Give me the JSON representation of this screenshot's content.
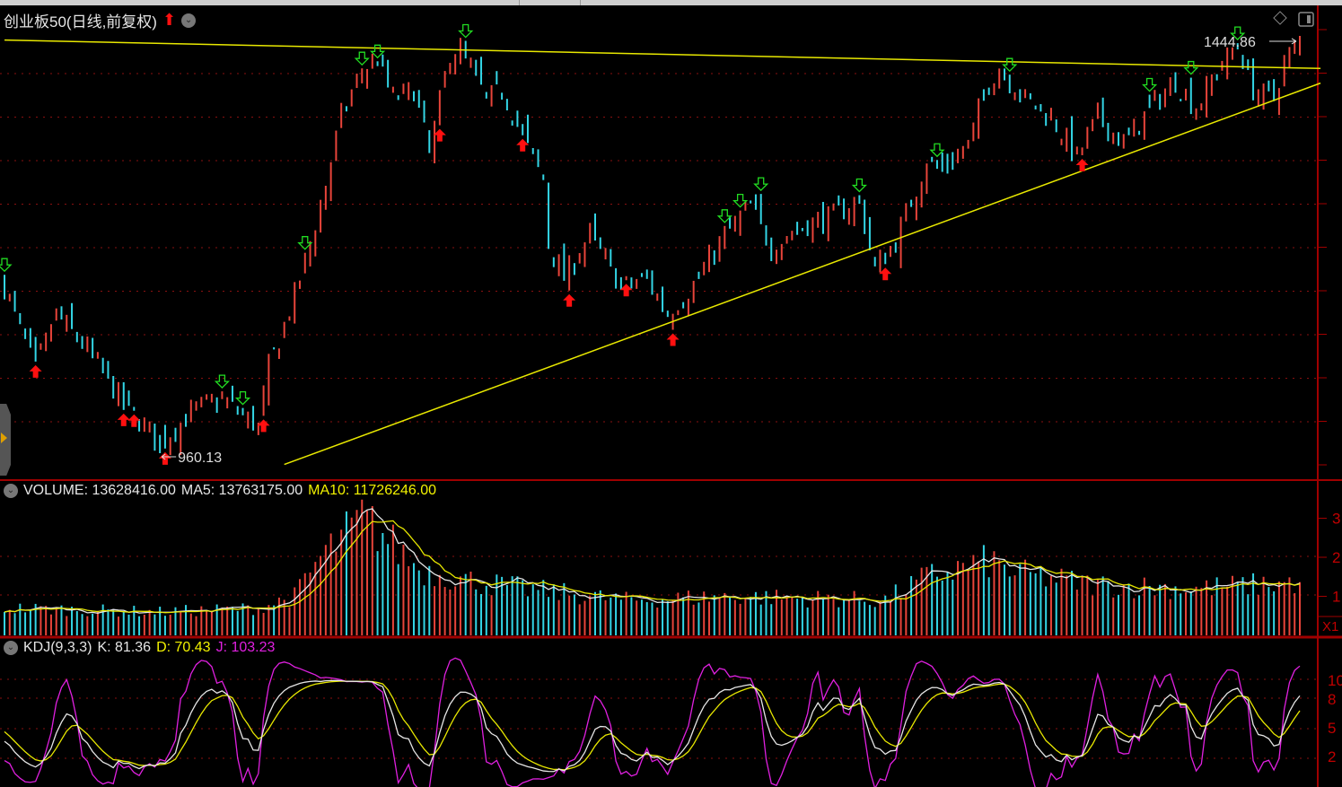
{
  "header": {
    "title": "创业板50(日线,前复权)",
    "title_arrow_icon": "red-up-arrow-icon",
    "dropdown_icon": "chevron-down-icon"
  },
  "toolbar_icons": [
    "diamond-icon",
    "panel-toggle-icon"
  ],
  "colors": {
    "up": "#e8443a",
    "down": "#33d6e6",
    "trendline": "#e8e800",
    "ma5": "#e6e6e6",
    "ma10": "#e8e800",
    "k": "#e6e6e6",
    "d": "#e8e800",
    "j": "#e020e0",
    "axis": "#a00000",
    "buy": "#ff1010",
    "sell": "#22dd22"
  },
  "volume_legend": {
    "volume": "VOLUME: 13628416.00",
    "ma5": "MA5: 13763175.00",
    "ma10": "MA10: 11726246.00"
  },
  "kdj_legend": {
    "name": "KDJ(9,3,3)",
    "k": "K: 81.36",
    "d": "D: 70.43",
    "j": "J: 103.23"
  },
  "chart_data": [
    {
      "type": "ohlc",
      "panel": "price",
      "bar_count": 251,
      "annotations": {
        "low_label": "960.13",
        "high_label": "1444.86",
        "low": 960.13,
        "high": 1444.86,
        "low_bar": 30,
        "high_bar": 250
      },
      "close_keypoints": [
        [
          0,
          1153
        ],
        [
          6,
          1059
        ],
        [
          10,
          1122
        ],
        [
          16,
          1080
        ],
        [
          23,
          1017
        ],
        [
          30,
          972
        ],
        [
          37,
          1012
        ],
        [
          42,
          1023
        ],
        [
          49,
          991
        ],
        [
          51,
          1059
        ],
        [
          56,
          1142
        ],
        [
          61,
          1247
        ],
        [
          65,
          1351
        ],
        [
          69,
          1403
        ],
        [
          72,
          1418
        ],
        [
          75,
          1372
        ],
        [
          79,
          1382
        ],
        [
          82,
          1309
        ],
        [
          86,
          1424
        ],
        [
          88,
          1429
        ],
        [
          93,
          1372
        ],
        [
          96,
          1382
        ],
        [
          100,
          1330
        ],
        [
          104,
          1278
        ],
        [
          105,
          1205
        ],
        [
          108,
          1163
        ],
        [
          113,
          1215
        ],
        [
          119,
          1153
        ],
        [
          124,
          1163
        ],
        [
          128,
          1122
        ],
        [
          133,
          1153
        ],
        [
          138,
          1205
        ],
        [
          144,
          1247
        ],
        [
          148,
          1200
        ],
        [
          155,
          1226
        ],
        [
          160,
          1236
        ],
        [
          165,
          1252
        ],
        [
          168,
          1174
        ],
        [
          172,
          1205
        ],
        [
          178,
          1299
        ],
        [
          181,
          1288
        ],
        [
          186,
          1319
        ],
        [
          190,
          1392
        ],
        [
          192,
          1408
        ],
        [
          197,
          1372
        ],
        [
          202,
          1351
        ],
        [
          207,
          1304
        ],
        [
          211,
          1351
        ],
        [
          216,
          1319
        ],
        [
          221,
          1361
        ],
        [
          226,
          1392
        ],
        [
          230,
          1361
        ],
        [
          235,
          1413
        ],
        [
          238,
          1434
        ],
        [
          241,
          1382
        ],
        [
          245,
          1372
        ],
        [
          247,
          1413
        ],
        [
          250,
          1439
        ]
      ],
      "buy_signals": [
        6,
        23,
        25,
        31,
        50,
        84,
        100,
        109,
        120,
        129,
        170,
        208
      ],
      "sell_signals": [
        0,
        42,
        46,
        58,
        69,
        72,
        89,
        139,
        142,
        146,
        165,
        180,
        194,
        221,
        229,
        238
      ],
      "trendlines": [
        {
          "from": [
            0,
            1440
          ],
          "to": [
            254,
            1407
          ]
        },
        {
          "from": [
            54,
            947
          ],
          "to": [
            254,
            1390
          ]
        }
      ],
      "grid": true
    },
    {
      "type": "bar",
      "panel": "volume",
      "unit_label": "X1",
      "y_tick_labels": [
        "3",
        "2",
        "1"
      ],
      "y_ticks": [
        30000000,
        20000000,
        10000000
      ],
      "volume_keypoints": [
        [
          0,
          7000000
        ],
        [
          30,
          6000000
        ],
        [
          49,
          7000000
        ],
        [
          56,
          10000000
        ],
        [
          61,
          20000000
        ],
        [
          66,
          26000000
        ],
        [
          69,
          30000000
        ],
        [
          72,
          27000000
        ],
        [
          80,
          17000000
        ],
        [
          90,
          14000000
        ],
        [
          100,
          12000000
        ],
        [
          120,
          9000000
        ],
        [
          140,
          10000000
        ],
        [
          170,
          9000000
        ],
        [
          178,
          15000000
        ],
        [
          190,
          19000000
        ],
        [
          195,
          16000000
        ],
        [
          210,
          13000000
        ],
        [
          230,
          12000000
        ],
        [
          250,
          13628416
        ]
      ],
      "series": [
        "VOLUME",
        "MA5",
        "MA10"
      ]
    },
    {
      "type": "line",
      "panel": "kdj",
      "params": [
        9,
        3,
        3
      ],
      "y_tick_labels": [
        "10",
        "8",
        "5",
        "2"
      ],
      "y_ticks": [
        100,
        80,
        50,
        20
      ],
      "series": [
        "K",
        "D",
        "J"
      ],
      "last": {
        "K": 81.36,
        "D": 70.43,
        "J": 103.23
      }
    }
  ]
}
